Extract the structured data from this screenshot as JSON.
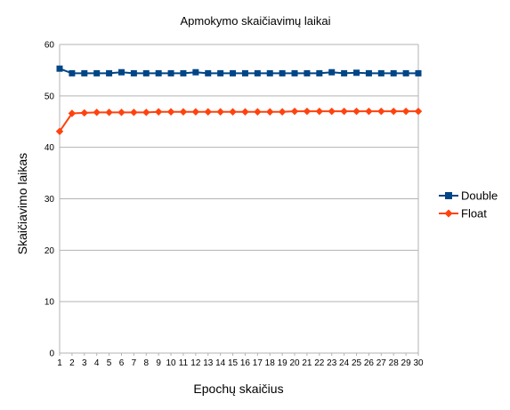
{
  "chart_data": {
    "type": "line",
    "title": "Apmokymo skaičiavimų laikai",
    "xlabel": "Epochų skaičius",
    "ylabel": "Skaičiavimo laikas",
    "ylim": [
      0,
      60
    ],
    "yticks": [
      0,
      10,
      20,
      30,
      40,
      50,
      60
    ],
    "x": [
      1,
      2,
      3,
      4,
      5,
      6,
      7,
      8,
      9,
      10,
      11,
      12,
      13,
      14,
      15,
      16,
      17,
      18,
      19,
      20,
      21,
      22,
      23,
      24,
      25,
      26,
      27,
      28,
      29,
      30
    ],
    "grid": "horizontal",
    "legend_position": "right",
    "series": [
      {
        "name": "Double",
        "color": "#004586",
        "marker": "square",
        "values": [
          55.3,
          54.4,
          54.4,
          54.4,
          54.4,
          54.6,
          54.4,
          54.4,
          54.4,
          54.4,
          54.4,
          54.6,
          54.4,
          54.4,
          54.4,
          54.4,
          54.4,
          54.4,
          54.4,
          54.4,
          54.4,
          54.4,
          54.6,
          54.4,
          54.5,
          54.4,
          54.4,
          54.4,
          54.4,
          54.4
        ]
      },
      {
        "name": "Float",
        "color": "#ff420e",
        "marker": "diamond",
        "values": [
          43.1,
          46.6,
          46.7,
          46.8,
          46.8,
          46.8,
          46.8,
          46.8,
          46.9,
          46.9,
          46.9,
          46.9,
          46.9,
          46.9,
          46.9,
          46.9,
          46.9,
          46.9,
          46.9,
          47.0,
          47.0,
          47.0,
          47.0,
          47.0,
          47.0,
          47.0,
          47.0,
          47.0,
          47.0,
          47.0
        ]
      }
    ]
  }
}
